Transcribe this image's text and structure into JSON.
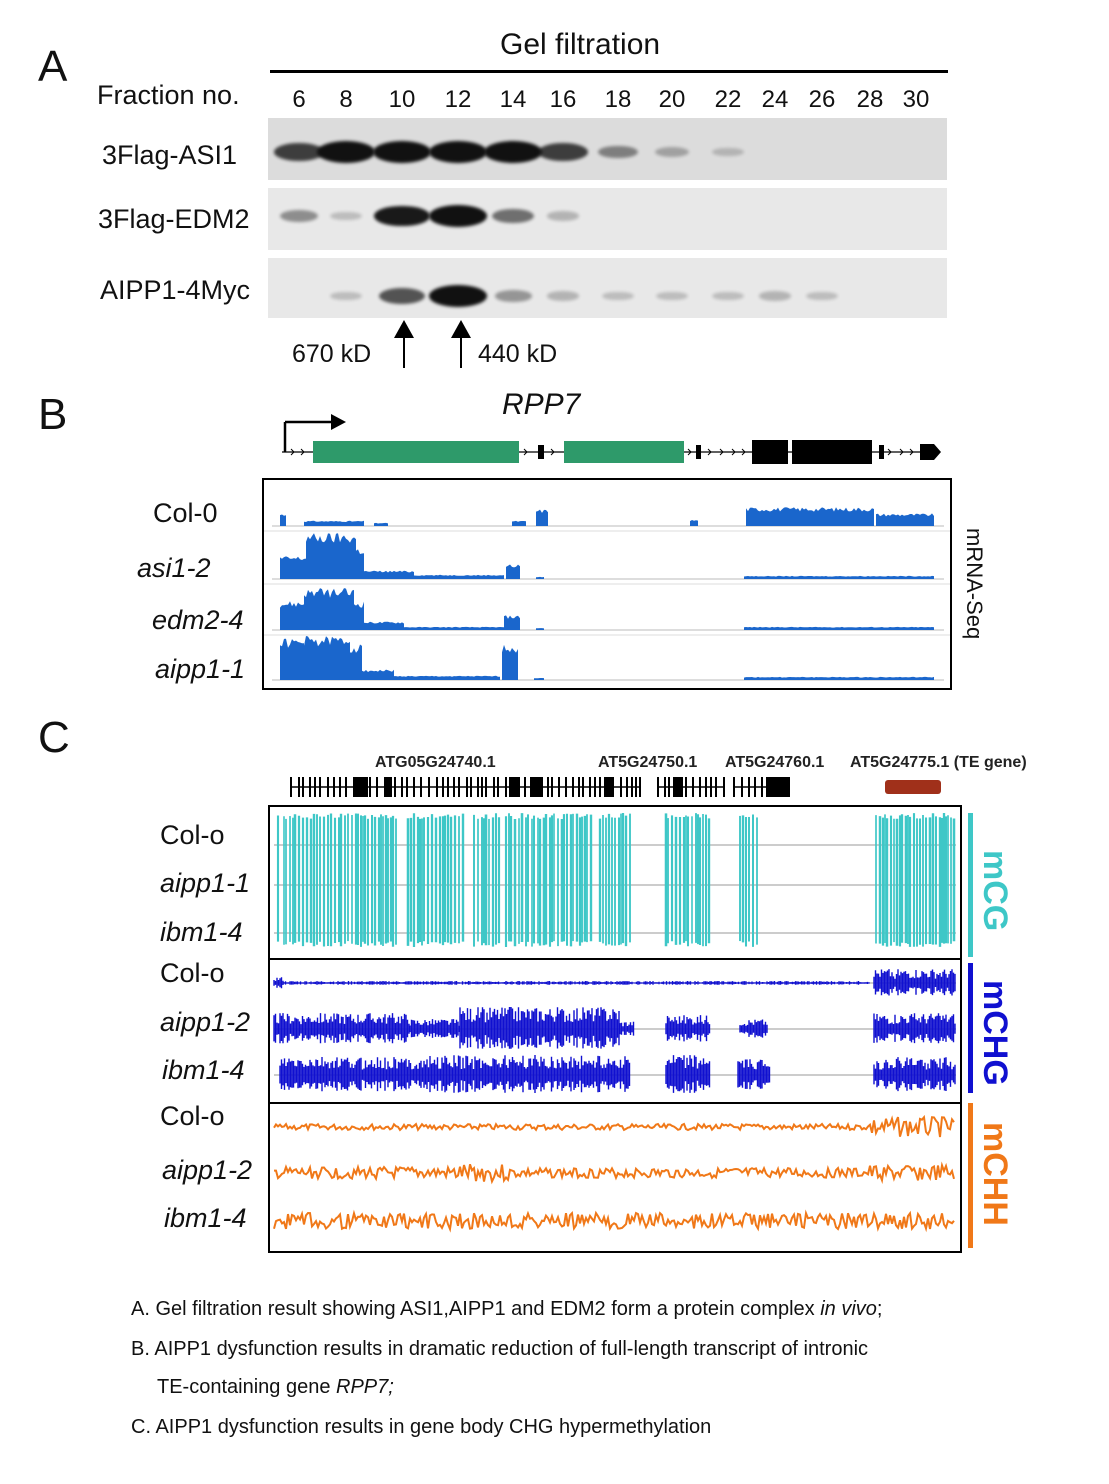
{
  "colors": {
    "cg": "#3ec7c7",
    "chg": "#1010d0",
    "chh": "#f07818",
    "mrna": "#1a66cc",
    "exon_green": "#2e9a6a",
    "te_brown": "#a0301a"
  },
  "panelA": {
    "letter": "A",
    "title": "Gel filtration",
    "fraction_label": "Fraction no.",
    "fractions": [
      "6",
      "8",
      "10",
      "12",
      "14",
      "16",
      "18",
      "20",
      "22",
      "24",
      "26",
      "28",
      "30"
    ],
    "rows": [
      {
        "label": "3Flag-ASI1",
        "intensities": [
          0.7,
          1.0,
          1.0,
          1.0,
          1.0,
          0.7,
          0.35,
          0.15,
          0.05,
          0,
          0,
          0,
          0
        ]
      },
      {
        "label": "3Flag-EDM2",
        "intensities": [
          0.3,
          0.05,
          0.9,
          1.0,
          0.45,
          0.1,
          0,
          0,
          0,
          0,
          0,
          0,
          0
        ]
      },
      {
        "label": "AIPP1-4Myc",
        "intensities": [
          0,
          0.05,
          0.6,
          1.0,
          0.25,
          0.1,
          0.05,
          0.05,
          0.05,
          0.1,
          0.05,
          0,
          0
        ]
      }
    ],
    "marker_left": "670 kD",
    "marker_right": "440 kD"
  },
  "panelB": {
    "letter": "B",
    "gene": "RPP7",
    "samples": [
      "Col-0",
      "asi1-2",
      "edm2-4",
      "aipp1-1"
    ],
    "side_label": "mRNA-Seq"
  },
  "panelC": {
    "letter": "C",
    "genes": [
      "ATG05G24740.1",
      "AT5G24750.1",
      "AT5G24760.1",
      "AT5G24775.1 (TE gene)"
    ],
    "groups": [
      {
        "tag": "mCG",
        "samples": [
          "Col-o",
          "aipp1-1",
          "ibm1-4"
        ]
      },
      {
        "tag": "mCHG",
        "samples": [
          "Col-o",
          "aipp1-2",
          "ibm1-4"
        ]
      },
      {
        "tag": "mCHH",
        "samples": [
          "Col-o",
          "aipp1-2",
          "ibm1-4"
        ]
      }
    ]
  },
  "legend": {
    "a_prefix": "A. Gel filtration result showing ASI1,AIPP1 and EDM2 form a protein complex ",
    "a_italic": "in vivo",
    "a_suffix": ";",
    "b_line1": "B. AIPP1 dysfunction results in dramatic reduction of full-length transcript of intronic",
    "b_line2_prefix": "TE-containing gene ",
    "b_line2_italic": "RPP7;",
    "c_line": "C. AIPP1 dysfunction results in gene body CHG hypermethylation"
  }
}
